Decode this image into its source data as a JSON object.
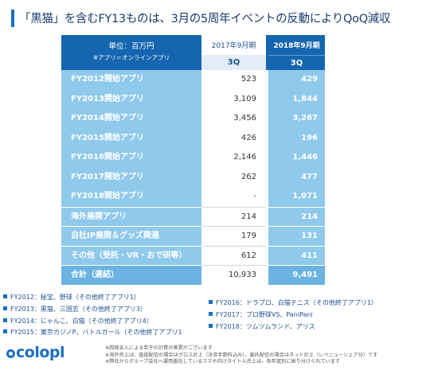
{
  "title": "「黒猫」を含むFY13ものは、3月の5周年イベントの反動によりQoQ減収",
  "table": {
    "unit": "単位：百万円",
    "note": "※アプリ＝オンラインアプリ",
    "col1_period": "2017年9月期",
    "col1_quarter": "3Q",
    "col2_period": "2018年9月期",
    "col2_quarter": "3Q",
    "rows": [
      {
        "label": "FY2012開始アプリ",
        "v2017": "523",
        "v2018": "429"
      },
      {
        "label": "FY2013開始アプリ",
        "v2017": "3,109",
        "v2018": "1,844"
      },
      {
        "label": "FY2014開始アプリ",
        "v2017": "3,456",
        "v2018": "3,267"
      },
      {
        "label": "FY2015開始アプリ",
        "v2017": "426",
        "v2018": "196"
      },
      {
        "label": "FY2016開始アプリ",
        "v2017": "2,146",
        "v2018": "1,446"
      },
      {
        "label": "FY2017開始アプリ",
        "v2017": "262",
        "v2018": "477"
      },
      {
        "label": "FY2018開始アプリ",
        "v2017": "-",
        "v2018": "1,071"
      },
      {
        "label": "海外展開アプリ",
        "v2017": "214",
        "v2018": "214"
      },
      {
        "label": "自社IP展開＆グッズ関連",
        "v2017": "179",
        "v2018": "131"
      },
      {
        "label": "その他（受託・VR・おで研等）",
        "v2017": "612",
        "v2018": "411"
      },
      {
        "label": "合計（連結）",
        "v2017": "10,933",
        "v2018": "9,491"
      }
    ]
  },
  "legend_left": [
    "FY2012：秘宝、野球（その他終了アプリ1）",
    "FY2013：黒猫、三国志（その他終了アプリ3）",
    "FY2014：にゃんこ、白猫（その他終了アプリ4）",
    "FY2015：東京カジノP、バトルガール（その他終了アプリ1"
  ],
  "legend_right": [
    "FY2016：ドラプロ、白猫テニス（その他終了アプリ1）",
    "FY2017：プロ野球VS、PaniPani",
    "FY2018：ツムツムランド、アリス"
  ],
  "footnotes": [
    "※四捨五入による若干の計算の差異がございます",
    "※海外売上は、直接配信の場合はグロス計上（決済手数料込み）、委託配信の場合はネット計上（レベニューシェア分）です",
    "※弊社からグループ会社へ運用委託しているスマホ向けタイトル売上は、各年度別に振り分けられています"
  ],
  "logo": "colopl"
}
